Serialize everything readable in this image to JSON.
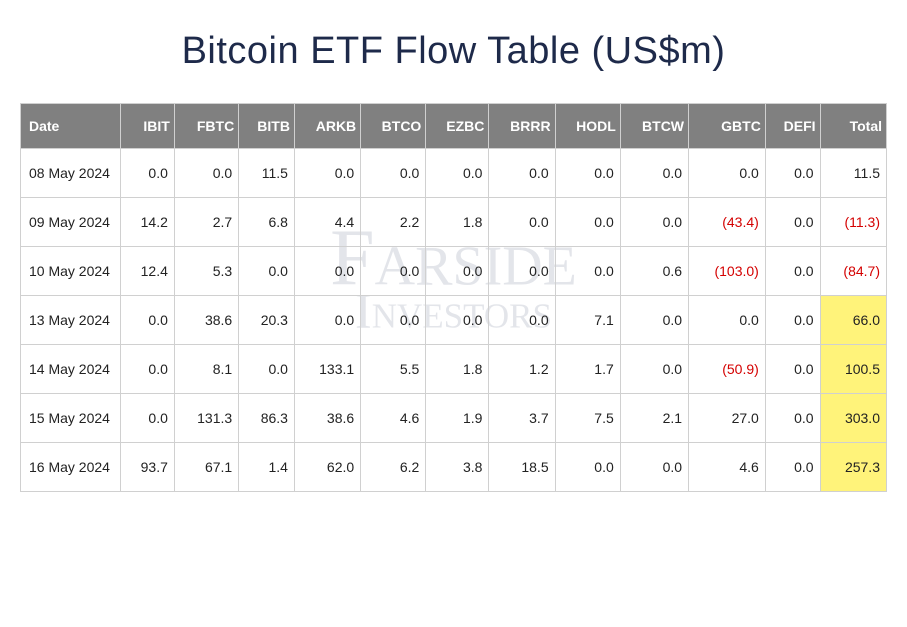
{
  "title": "Bitcoin ETF Flow Table (US$m)",
  "watermark": {
    "line1": "Farside",
    "line2": "Investors"
  },
  "styling": {
    "title_color": "#1e2a4a",
    "title_fontsize": 38,
    "header_bg": "#808080",
    "header_fg": "#ffffff",
    "border_color": "#d0d0d0",
    "cell_fontsize": 14,
    "negative_color": "#d40000",
    "highlight_bg": "#fff37a",
    "watermark_color": "rgba(100,110,140,0.18)",
    "background": "#ffffff"
  },
  "table": {
    "columns": [
      "Date",
      "IBIT",
      "FBTC",
      "BITB",
      "ARKB",
      "BTCO",
      "EZBC",
      "BRRR",
      "HODL",
      "BTCW",
      "GBTC",
      "DEFI",
      "Total"
    ],
    "rows": [
      {
        "date": "08 May 2024",
        "cells": [
          {
            "v": "0.0"
          },
          {
            "v": "0.0"
          },
          {
            "v": "11.5"
          },
          {
            "v": "0.0"
          },
          {
            "v": "0.0"
          },
          {
            "v": "0.0"
          },
          {
            "v": "0.0"
          },
          {
            "v": "0.0"
          },
          {
            "v": "0.0"
          },
          {
            "v": "0.0"
          },
          {
            "v": "0.0"
          },
          {
            "v": "11.5"
          }
        ]
      },
      {
        "date": "09 May 2024",
        "cells": [
          {
            "v": "14.2"
          },
          {
            "v": "2.7"
          },
          {
            "v": "6.8"
          },
          {
            "v": "4.4"
          },
          {
            "v": "2.2"
          },
          {
            "v": "1.8"
          },
          {
            "v": "0.0"
          },
          {
            "v": "0.0"
          },
          {
            "v": "0.0"
          },
          {
            "v": "(43.4)",
            "neg": true
          },
          {
            "v": "0.0"
          },
          {
            "v": "(11.3)",
            "neg": true
          }
        ]
      },
      {
        "date": "10 May 2024",
        "cells": [
          {
            "v": "12.4"
          },
          {
            "v": "5.3"
          },
          {
            "v": "0.0"
          },
          {
            "v": "0.0"
          },
          {
            "v": "0.0"
          },
          {
            "v": "0.0"
          },
          {
            "v": "0.0"
          },
          {
            "v": "0.0"
          },
          {
            "v": "0.6"
          },
          {
            "v": "(103.0)",
            "neg": true
          },
          {
            "v": "0.0"
          },
          {
            "v": "(84.7)",
            "neg": true
          }
        ]
      },
      {
        "date": "13 May 2024",
        "cells": [
          {
            "v": "0.0"
          },
          {
            "v": "38.6"
          },
          {
            "v": "20.3"
          },
          {
            "v": "0.0"
          },
          {
            "v": "0.0"
          },
          {
            "v": "0.0"
          },
          {
            "v": "0.0"
          },
          {
            "v": "7.1"
          },
          {
            "v": "0.0"
          },
          {
            "v": "0.0"
          },
          {
            "v": "0.0"
          },
          {
            "v": "66.0",
            "hl": true
          }
        ]
      },
      {
        "date": "14 May 2024",
        "cells": [
          {
            "v": "0.0"
          },
          {
            "v": "8.1"
          },
          {
            "v": "0.0"
          },
          {
            "v": "133.1"
          },
          {
            "v": "5.5"
          },
          {
            "v": "1.8"
          },
          {
            "v": "1.2"
          },
          {
            "v": "1.7"
          },
          {
            "v": "0.0"
          },
          {
            "v": "(50.9)",
            "neg": true
          },
          {
            "v": "0.0"
          },
          {
            "v": "100.5",
            "hl": true
          }
        ]
      },
      {
        "date": "15 May 2024",
        "cells": [
          {
            "v": "0.0"
          },
          {
            "v": "131.3"
          },
          {
            "v": "86.3"
          },
          {
            "v": "38.6"
          },
          {
            "v": "4.6"
          },
          {
            "v": "1.9"
          },
          {
            "v": "3.7"
          },
          {
            "v": "7.5"
          },
          {
            "v": "2.1"
          },
          {
            "v": "27.0"
          },
          {
            "v": "0.0"
          },
          {
            "v": "303.0",
            "hl": true
          }
        ]
      },
      {
        "date": "16 May 2024",
        "cells": [
          {
            "v": "93.7"
          },
          {
            "v": "67.1"
          },
          {
            "v": "1.4"
          },
          {
            "v": "62.0"
          },
          {
            "v": "6.2"
          },
          {
            "v": "3.8"
          },
          {
            "v": "18.5"
          },
          {
            "v": "0.0"
          },
          {
            "v": "0.0"
          },
          {
            "v": "4.6"
          },
          {
            "v": "0.0"
          },
          {
            "v": "257.3",
            "hl": true
          }
        ]
      }
    ]
  }
}
